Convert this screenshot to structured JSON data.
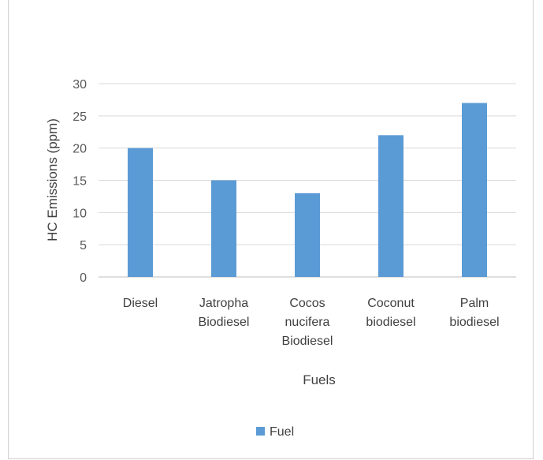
{
  "chart_data": {
    "type": "bar",
    "categories": [
      [
        "Diesel"
      ],
      [
        "Jatropha",
        "Biodiesel"
      ],
      [
        "Cocos",
        "nucifera",
        "Biodiesel"
      ],
      [
        "Coconut",
        "biodiesel"
      ],
      [
        "Palm",
        "biodiesel"
      ]
    ],
    "series": [
      {
        "name": "Fuel",
        "values": [
          20,
          15,
          13,
          22,
          27
        ],
        "color": "#5b9bd5"
      }
    ],
    "xlabel": "Fuels",
    "ylabel": "HC Emissions (ppm)",
    "ylim": [
      0,
      30
    ],
    "yticks": [
      0,
      5,
      10,
      15,
      20,
      25,
      30
    ],
    "grid": true,
    "legend_position": "bottom"
  }
}
